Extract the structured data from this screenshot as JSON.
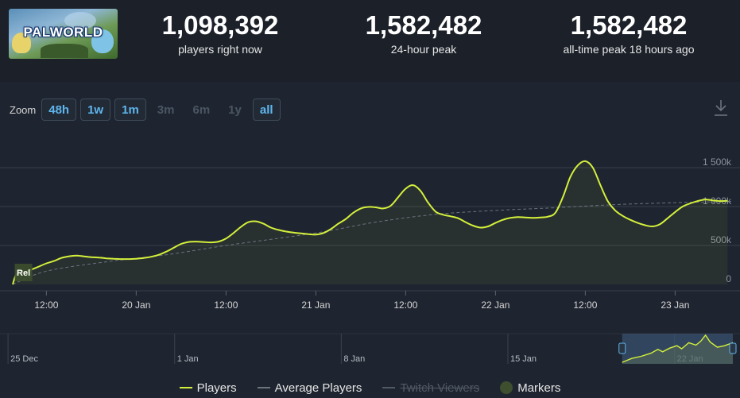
{
  "header": {
    "logo_text": "PALWORLD",
    "stats": [
      {
        "value": "1,098,392",
        "label": "players right now"
      },
      {
        "value": "1,582,482",
        "label": "24-hour peak"
      },
      {
        "value": "1,582,482",
        "label": "all-time peak 18 hours ago"
      }
    ]
  },
  "zoom": {
    "label": "Zoom",
    "buttons": [
      {
        "label": "48h",
        "active": true
      },
      {
        "label": "1w",
        "active": true
      },
      {
        "label": "1m",
        "active": true
      },
      {
        "label": "3m",
        "active": false
      },
      {
        "label": "6m",
        "active": false
      },
      {
        "label": "1y",
        "active": false
      },
      {
        "label": "all",
        "active": true
      }
    ],
    "download_icon": "download-icon"
  },
  "colors": {
    "players": "#d4f03b",
    "average": "#6b737d",
    "twitch": "#505a66",
    "markers": "#3d4f2e",
    "background": "#1b2029",
    "panel": "#1f2530"
  },
  "chart_data": {
    "type": "line",
    "x_unit": "hours since 19 Jan 00:00",
    "x_ticks": [
      {
        "x": 12,
        "label": "12:00"
      },
      {
        "x": 24,
        "label": "20 Jan"
      },
      {
        "x": 36,
        "label": "12:00"
      },
      {
        "x": 48,
        "label": "21 Jan"
      },
      {
        "x": 60,
        "label": "12:00"
      },
      {
        "x": 72,
        "label": "22 Jan"
      },
      {
        "x": 84,
        "label": "12:00"
      },
      {
        "x": 96,
        "label": "23 Jan"
      }
    ],
    "xlim": [
      7.5,
      103.5
    ],
    "y_ticks": [
      {
        "y": 0,
        "label": "0"
      },
      {
        "y": 500000,
        "label": "500k"
      },
      {
        "y": 1000000,
        "label": "1 000k"
      },
      {
        "y": 1500000,
        "label": "1 500k"
      }
    ],
    "ylim": [
      0,
      1500000
    ],
    "grid": true,
    "series": [
      {
        "name": "Players",
        "points": [
          [
            7.5,
            0
          ],
          [
            8.0,
            130000
          ],
          [
            9.0,
            150000
          ],
          [
            10.0,
            190000
          ],
          [
            11.0,
            230000
          ],
          [
            12.0,
            270000
          ],
          [
            13.0,
            300000
          ],
          [
            14.0,
            340000
          ],
          [
            15.0,
            360000
          ],
          [
            16.0,
            370000
          ],
          [
            17.0,
            360000
          ],
          [
            18.0,
            350000
          ],
          [
            19.0,
            345000
          ],
          [
            20.0,
            335000
          ],
          [
            21.0,
            330000
          ],
          [
            22.0,
            325000
          ],
          [
            23.0,
            325000
          ],
          [
            24.0,
            330000
          ],
          [
            25.0,
            340000
          ],
          [
            26.0,
            355000
          ],
          [
            27.0,
            380000
          ],
          [
            28.0,
            420000
          ],
          [
            29.0,
            470000
          ],
          [
            30.0,
            520000
          ],
          [
            31.0,
            545000
          ],
          [
            32.0,
            550000
          ],
          [
            33.0,
            545000
          ],
          [
            34.0,
            540000
          ],
          [
            35.0,
            550000
          ],
          [
            36.0,
            590000
          ],
          [
            37.0,
            660000
          ],
          [
            38.0,
            740000
          ],
          [
            39.0,
            800000
          ],
          [
            40.0,
            810000
          ],
          [
            41.0,
            780000
          ],
          [
            42.0,
            730000
          ],
          [
            43.0,
            700000
          ],
          [
            44.0,
            680000
          ],
          [
            45.0,
            665000
          ],
          [
            46.0,
            655000
          ],
          [
            47.0,
            645000
          ],
          [
            48.0,
            640000
          ],
          [
            49.0,
            660000
          ],
          [
            50.0,
            710000
          ],
          [
            51.0,
            780000
          ],
          [
            52.0,
            840000
          ],
          [
            53.0,
            920000
          ],
          [
            54.0,
            975000
          ],
          [
            55.0,
            995000
          ],
          [
            56.0,
            990000
          ],
          [
            57.0,
            975000
          ],
          [
            58.0,
            1010000
          ],
          [
            59.0,
            1120000
          ],
          [
            60.0,
            1230000
          ],
          [
            61.0,
            1275000
          ],
          [
            62.0,
            1200000
          ],
          [
            63.0,
            1050000
          ],
          [
            64.0,
            935000
          ],
          [
            65.0,
            895000
          ],
          [
            66.0,
            875000
          ],
          [
            67.0,
            850000
          ],
          [
            68.0,
            800000
          ],
          [
            69.0,
            755000
          ],
          [
            70.0,
            730000
          ],
          [
            71.0,
            745000
          ],
          [
            72.0,
            790000
          ],
          [
            73.0,
            830000
          ],
          [
            74.0,
            855000
          ],
          [
            75.0,
            865000
          ],
          [
            76.0,
            860000
          ],
          [
            77.0,
            855000
          ],
          [
            78.0,
            860000
          ],
          [
            79.0,
            870000
          ],
          [
            80.0,
            920000
          ],
          [
            81.0,
            1120000
          ],
          [
            82.0,
            1380000
          ],
          [
            83.0,
            1530000
          ],
          [
            84.0,
            1582482
          ],
          [
            85.0,
            1500000
          ],
          [
            86.0,
            1280000
          ],
          [
            87.0,
            1070000
          ],
          [
            88.0,
            950000
          ],
          [
            89.0,
            880000
          ],
          [
            90.0,
            830000
          ],
          [
            91.0,
            790000
          ],
          [
            92.0,
            760000
          ],
          [
            93.0,
            745000
          ],
          [
            94.0,
            775000
          ],
          [
            95.0,
            850000
          ],
          [
            96.0,
            930000
          ],
          [
            97.0,
            1000000
          ],
          [
            98.0,
            1040000
          ],
          [
            99.0,
            1070000
          ],
          [
            100.0,
            1090000
          ],
          [
            101.0,
            1080000
          ],
          [
            102.0,
            1070000
          ],
          [
            103.0,
            1075000
          ]
        ]
      },
      {
        "name": "Average Players",
        "points": [
          [
            7.5,
            0
          ],
          [
            12.0,
            170000
          ],
          [
            20.0,
            290000
          ],
          [
            28.0,
            380000
          ],
          [
            36.0,
            500000
          ],
          [
            48.0,
            660000
          ],
          [
            56.0,
            800000
          ],
          [
            64.0,
            900000
          ],
          [
            72.0,
            950000
          ],
          [
            80.0,
            985000
          ],
          [
            88.0,
            1025000
          ],
          [
            96.0,
            1050000
          ],
          [
            103.5,
            1065000
          ]
        ]
      }
    ],
    "markers": [
      {
        "x": 8.2,
        "label": "Rel"
      }
    ]
  },
  "navigator": {
    "labels": [
      {
        "x": 0,
        "label": "25 Dec"
      },
      {
        "x": 7,
        "label": "1 Jan"
      },
      {
        "x": 14,
        "label": "8 Jan"
      },
      {
        "x": 21,
        "label": "15 Jan"
      },
      {
        "x": 28,
        "label": "22 Jan"
      }
    ],
    "xlim": [
      -0.07,
      30.45
    ],
    "selection": [
      25.8,
      30.45
    ],
    "series": [
      [
        25.8,
        0.05
      ],
      [
        26.2,
        0.18
      ],
      [
        26.6,
        0.25
      ],
      [
        27.0,
        0.35
      ],
      [
        27.3,
        0.48
      ],
      [
        27.5,
        0.4
      ],
      [
        27.8,
        0.52
      ],
      [
        28.1,
        0.6
      ],
      [
        28.3,
        0.5
      ],
      [
        28.6,
        0.7
      ],
      [
        28.9,
        0.62
      ],
      [
        29.1,
        0.75
      ],
      [
        29.3,
        0.95
      ],
      [
        29.5,
        0.72
      ],
      [
        29.8,
        0.55
      ],
      [
        30.1,
        0.6
      ],
      [
        30.45,
        0.7
      ]
    ]
  },
  "legend": {
    "items": [
      {
        "label": "Players",
        "hidden": false
      },
      {
        "label": "Average Players",
        "hidden": false
      },
      {
        "label": "Twitch Viewers",
        "hidden": true
      },
      {
        "label": "Markers",
        "hidden": false
      }
    ]
  }
}
